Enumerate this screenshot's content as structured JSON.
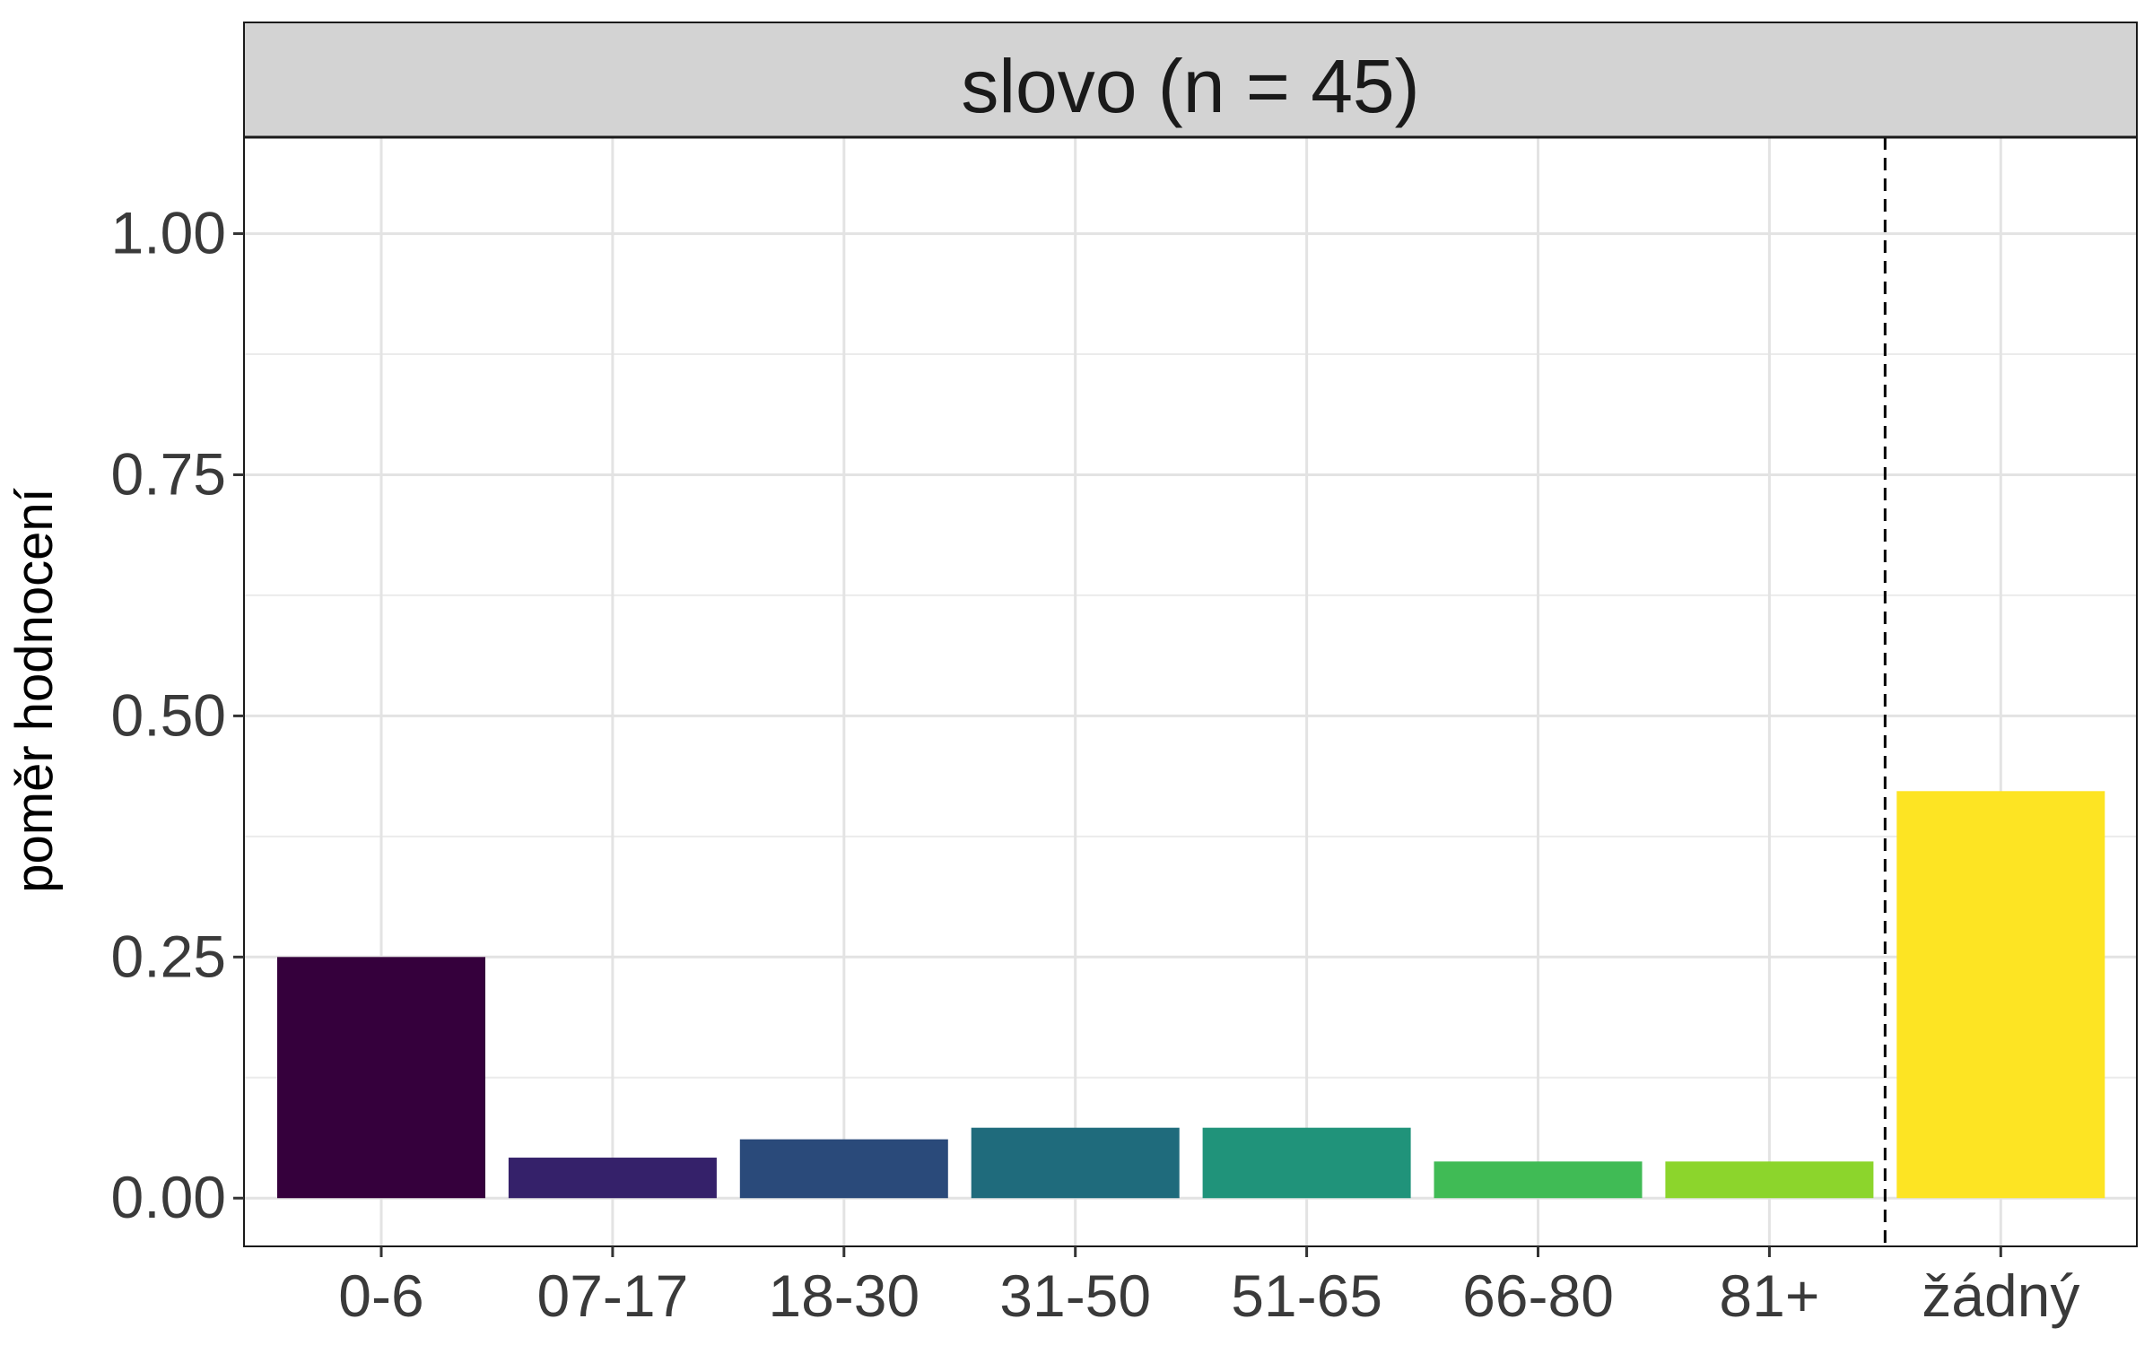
{
  "chart_data": {
    "type": "bar",
    "facet_label": "slovo (n = 45)",
    "ylabel": "poměr hodnocení",
    "xlabel": "",
    "ylim": [
      -0.05,
      1.1
    ],
    "y_ticks": [
      0.0,
      0.25,
      0.5,
      0.75,
      1.0
    ],
    "y_tick_labels": [
      "0.00",
      "0.25",
      "0.50",
      "0.75",
      "1.00"
    ],
    "categories": [
      "0-6",
      "07-17",
      "18-30",
      "31-50",
      "51-65",
      "66-80",
      "81+",
      "žádný"
    ],
    "values": [
      0.25,
      0.042,
      0.061,
      0.073,
      0.073,
      0.038,
      0.038,
      0.422
    ],
    "colors": [
      "#35003c",
      "#35216a",
      "#2a4a7a",
      "#1f6b7c",
      "#20937a",
      "#40bb55",
      "#8cd52c",
      "#fde423"
    ],
    "reference_line": {
      "between": [
        "81+",
        "žádný"
      ],
      "style": "dashed"
    },
    "grid": true,
    "legend": "none"
  }
}
